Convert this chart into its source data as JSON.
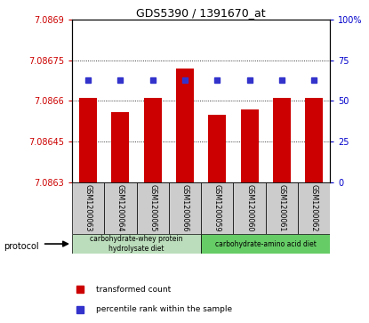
{
  "title": "GDS5390 / 1391670_at",
  "samples": [
    "GSM1200063",
    "GSM1200064",
    "GSM1200065",
    "GSM1200066",
    "GSM1200059",
    "GSM1200060",
    "GSM1200061",
    "GSM1200062"
  ],
  "transformed_counts": [
    7.08661,
    7.08656,
    7.08661,
    7.08672,
    7.08655,
    7.08657,
    7.08661,
    7.08661
  ],
  "percentile_ranks": [
    63,
    63,
    63,
    63,
    63,
    63,
    63,
    63
  ],
  "ylim_left": [
    7.0863,
    7.0869
  ],
  "ylim_right": [
    0,
    100
  ],
  "yticks_left": [
    7.0863,
    7.08645,
    7.0866,
    7.08675,
    7.0869
  ],
  "ytick_labels_left": [
    "7.0863",
    "7.08645",
    "7.0866",
    "7.08675",
    "7.0869"
  ],
  "yticks_right": [
    0,
    25,
    50,
    75,
    100
  ],
  "ytick_labels_right": [
    "0",
    "25",
    "50",
    "75",
    "100%"
  ],
  "bar_color": "#cc0000",
  "dot_color": "#3333cc",
  "protocol_group1": "carbohydrate-whey protein\nhydrolysate diet",
  "protocol_group2": "carbohydrate-amino acid diet",
  "protocol_color1": "#bbddbb",
  "protocol_color2": "#66cc66",
  "sample_box_color": "#cccccc",
  "group1_count": 4,
  "group2_count": 4,
  "bar_bottom": 7.0863,
  "legend_bar_color": "#cc0000",
  "legend_dot_color": "#3333cc"
}
